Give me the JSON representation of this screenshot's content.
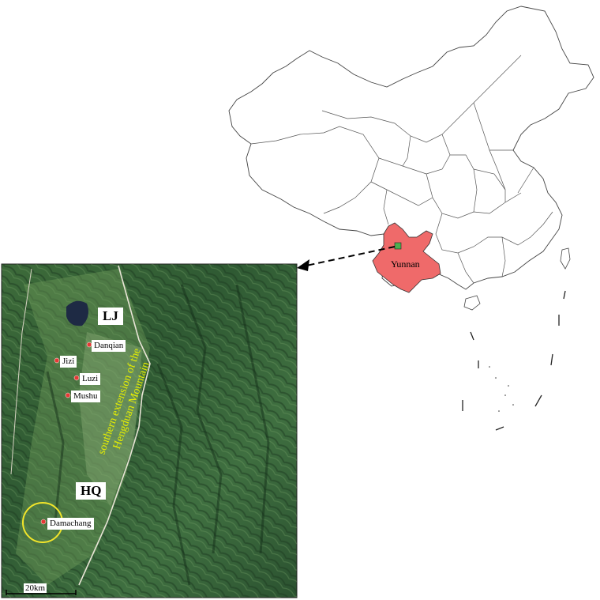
{
  "map": {
    "province_label": "Yunnan",
    "highlight_color": "#ef6a6a",
    "inset_marker_color": "#4caf50",
    "region_labels": {
      "lj": "LJ",
      "hq": "HQ"
    },
    "mountain_label_line1": "southern extension of the",
    "mountain_label_line2": "Hengduan Mountain",
    "sites": [
      {
        "name": "Danqian"
      },
      {
        "name": "Jizi"
      },
      {
        "name": "Luzi"
      },
      {
        "name": "Mushu"
      },
      {
        "name": "Damachang"
      }
    ],
    "scale_bar": "20km",
    "site_marker_color": "#e53935",
    "circle_color": "#f2e52a"
  }
}
